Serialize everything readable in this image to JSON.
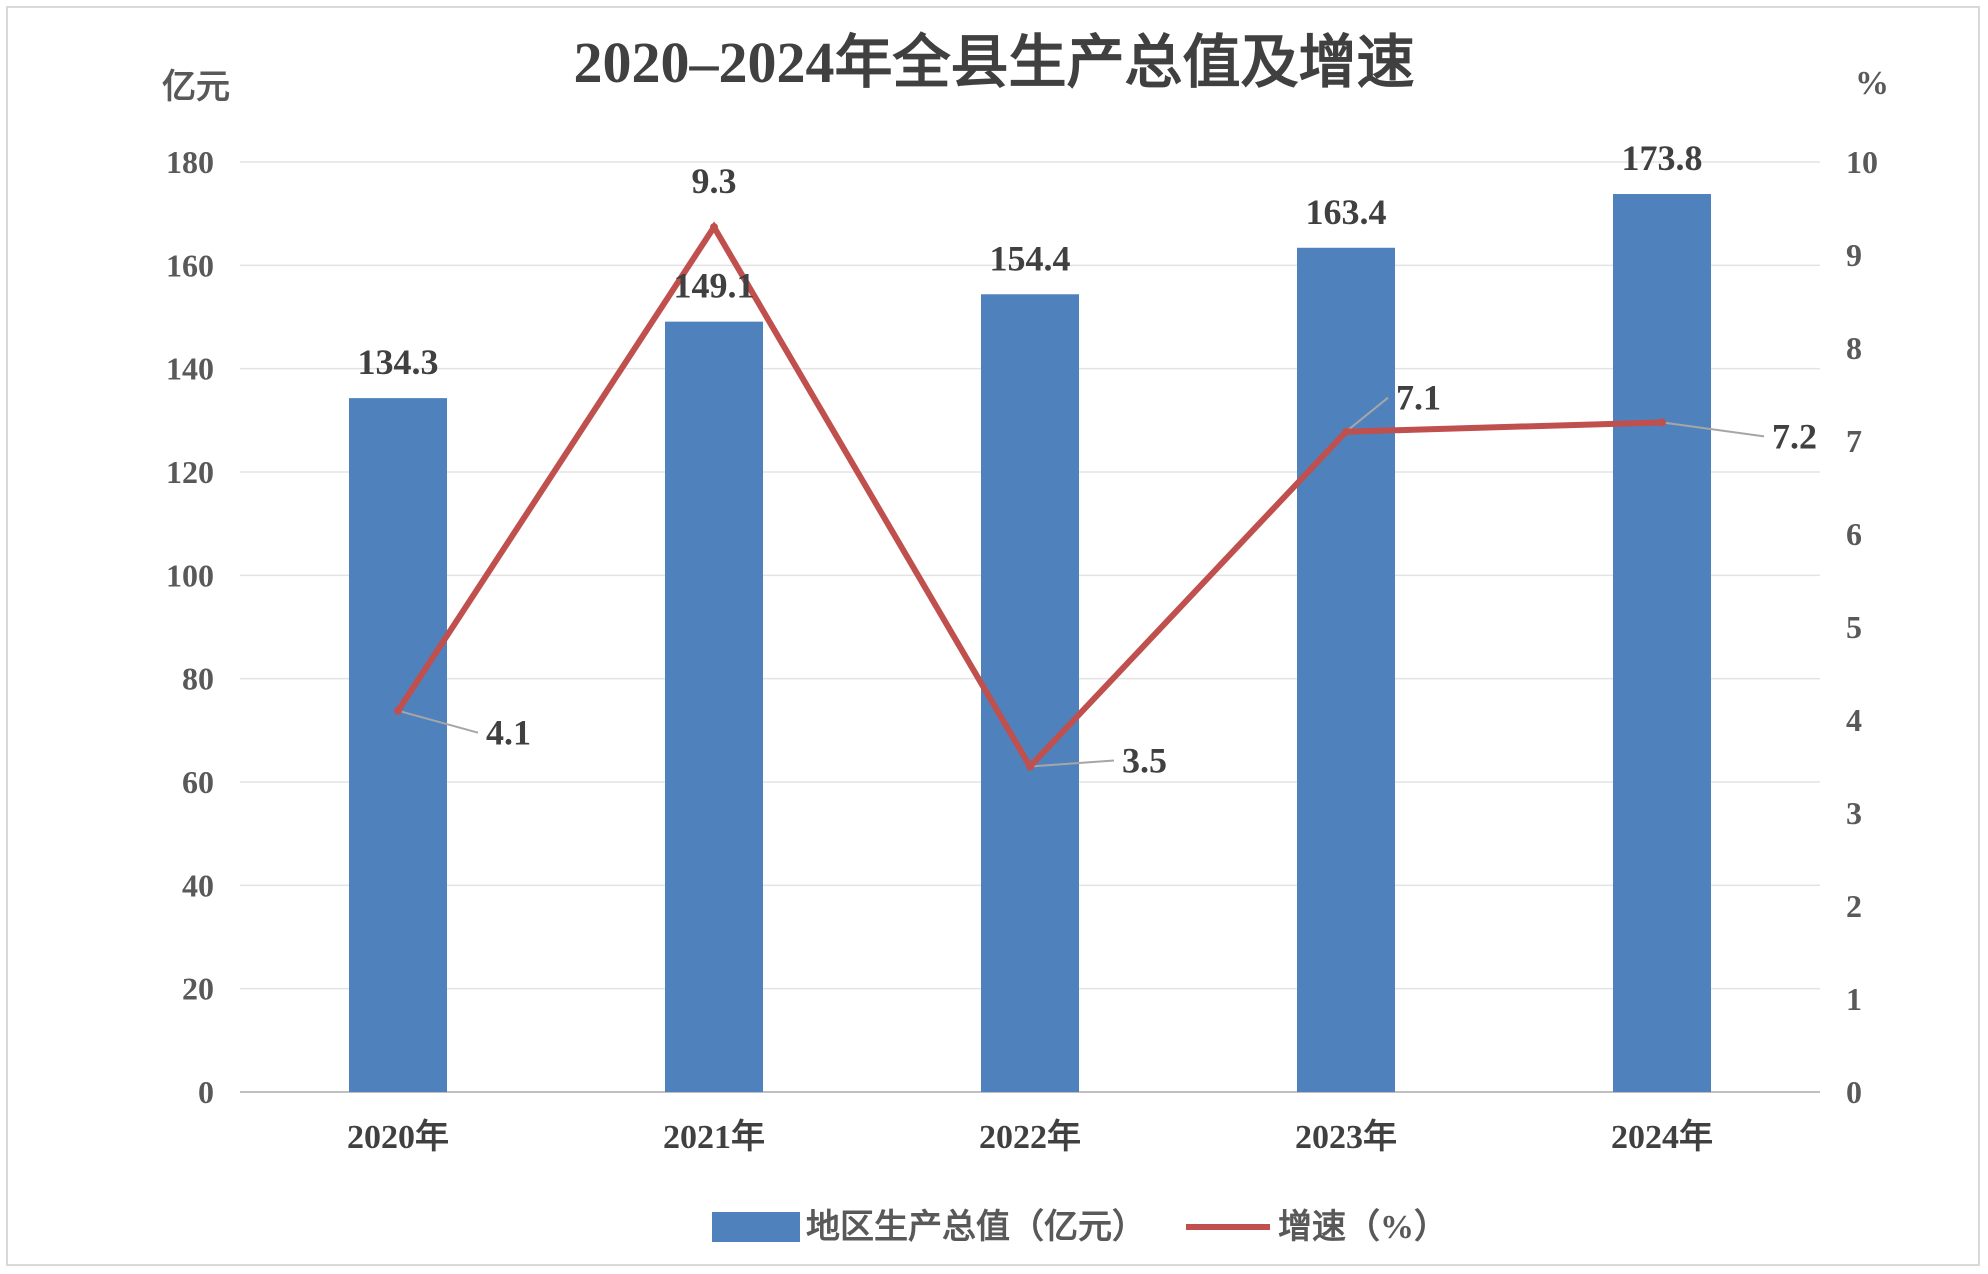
{
  "chart_data": {
    "type": "bar",
    "title": "2020–2024年全县生产总值及增速",
    "categories": [
      "2020年",
      "2021年",
      "2022年",
      "2023年",
      "2024年"
    ],
    "left_axis": {
      "unit": "亿元",
      "ylim": [
        0,
        180
      ],
      "ticks": [
        "0",
        "20",
        "40",
        "60",
        "80",
        "100",
        "120",
        "140",
        "160",
        "180"
      ]
    },
    "right_axis": {
      "unit": "%",
      "ylim": [
        0,
        10
      ],
      "ticks": [
        "0",
        "1",
        "2",
        "3",
        "4",
        "5",
        "6",
        "7",
        "8",
        "9",
        "10"
      ]
    },
    "series": [
      {
        "name": "地区生产总值（亿元）",
        "type": "bar",
        "axis": "left",
        "color": "#4f81bd",
        "values": [
          134.3,
          149.1,
          154.4,
          163.4,
          173.8
        ],
        "labels": [
          "134.3",
          "149.1",
          "154.4",
          "163.4",
          "173.8"
        ]
      },
      {
        "name": "增速（%）",
        "type": "line",
        "axis": "right",
        "color": "#c0504d",
        "values": [
          4.1,
          9.3,
          3.5,
          7.1,
          7.2
        ],
        "labels": [
          "4.1",
          "9.3",
          "3.5",
          "7.1",
          "7.2"
        ]
      }
    ],
    "grid": true,
    "legend": "bottom-center"
  }
}
